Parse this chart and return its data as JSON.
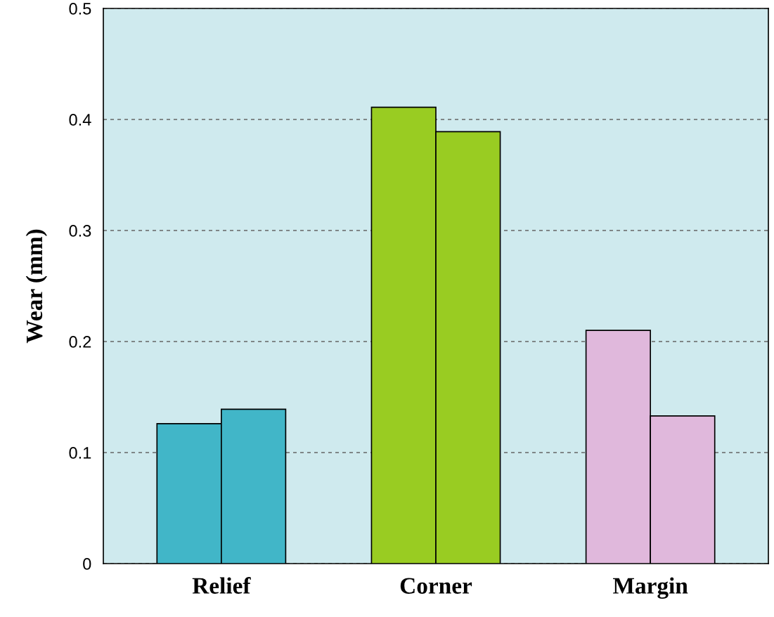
{
  "chart_data": {
    "type": "bar",
    "ylabel": "Wear (mm)",
    "categories": [
      "Relief",
      "Corner",
      "Margin"
    ],
    "series": [
      {
        "colors": [
          "#41b6c8",
          "#99cc22",
          "#e0b8dc"
        ],
        "values": [
          0.126,
          0.411,
          0.21
        ]
      },
      {
        "colors": [
          "#41b6c8",
          "#99cc22",
          "#e0b8dc"
        ],
        "values": [
          0.139,
          0.389,
          0.133
        ]
      }
    ],
    "ylim": [
      0,
      0.5
    ],
    "yticks": [
      {
        "value": 0,
        "label": "0"
      },
      0.1,
      0.2,
      0.3,
      0.4,
      0.5
    ],
    "grid": "y",
    "legend": false
  }
}
